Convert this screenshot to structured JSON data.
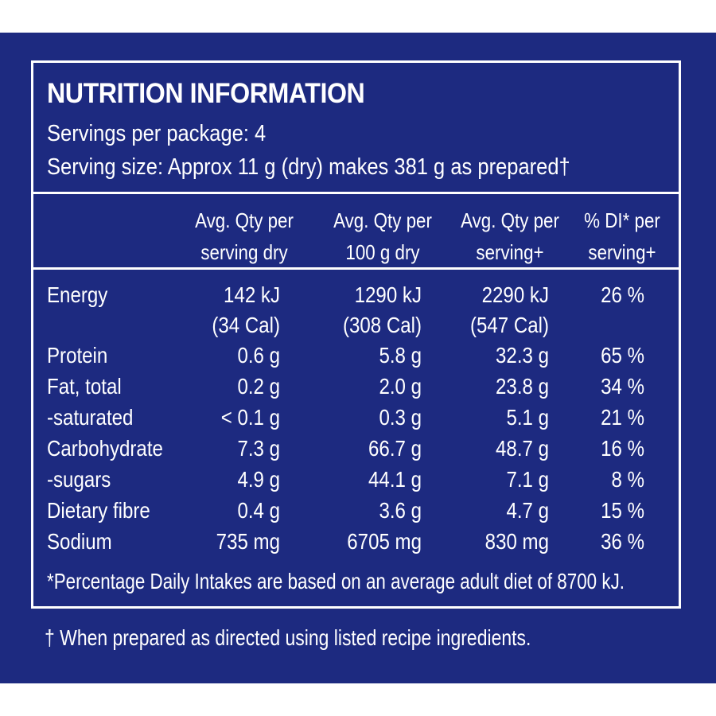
{
  "title": "NUTRITION INFORMATION",
  "servings_per_package": "Servings per package: 4",
  "serving_size": "Serving size: Approx 11 g (dry) makes 381 g as prepared†",
  "headers": [
    "Avg. Qty per\nserving dry",
    "Avg. Qty per\n100 g dry",
    "Avg. Qty per\nserving+",
    "% DI* per\nserving+"
  ],
  "energy_sub": [
    "(34 Cal)",
    "(308 Cal)",
    "(547 Cal)"
  ],
  "rows": [
    {
      "name": "Energy",
      "values": [
        "142 kJ",
        "1290 kJ",
        "2290 kJ",
        "26 %"
      ]
    },
    {
      "name": "Protein",
      "values": [
        "0.6 g",
        "5.8 g",
        "32.3 g",
        "65 %"
      ]
    },
    {
      "name": "Fat, total",
      "values": [
        "0.2 g",
        "2.0 g",
        "23.8 g",
        "34 %"
      ]
    },
    {
      "name": "-saturated",
      "values": [
        "< 0.1 g",
        "0.3 g",
        "5.1 g",
        "21 %"
      ]
    },
    {
      "name": "Carbohydrate",
      "values": [
        "7.3 g",
        "66.7 g",
        "48.7 g",
        "16 %"
      ]
    },
    {
      "name": "-sugars",
      "values": [
        "4.9 g",
        "44.1 g",
        "7.1 g",
        "8 %"
      ]
    },
    {
      "name": "Dietary fibre",
      "values": [
        "0.4 g",
        "3.6 g",
        "4.7 g",
        "15 %"
      ]
    },
    {
      "name": "Sodium",
      "values": [
        "735 mg",
        "6705 mg",
        "830 mg",
        "36 %"
      ]
    }
  ],
  "footnote": "*Percentage Daily Intakes are based on an average adult diet of 8700 kJ.",
  "dagger_note": "† When prepared as directed using listed recipe ingredients.",
  "colors": {
    "background": "#1d2a80",
    "text": "#ffffff"
  }
}
